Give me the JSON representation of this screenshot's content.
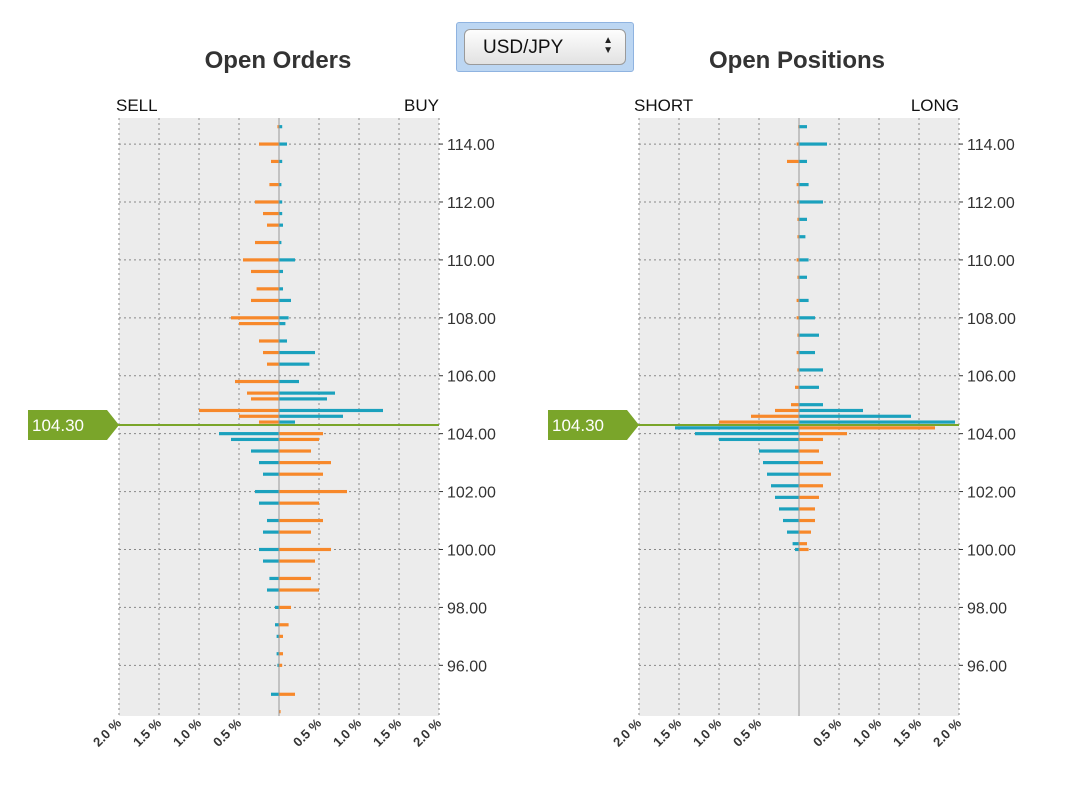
{
  "selector": {
    "label": "USD/JPY"
  },
  "colors": {
    "buy": "#1ba1bd",
    "sell": "#f7882a",
    "price": "#7aa52a",
    "plot_bg": "#ececec",
    "grid": "#888888"
  },
  "chart_data": [
    {
      "type": "bar",
      "orientation": "horizontal-diverging",
      "title": "Open Orders",
      "left_label": "SELL",
      "right_label": "BUY",
      "current_price": 104.3,
      "current_price_label": "104.30",
      "xlim": [
        -2.0,
        2.0
      ],
      "ylim": [
        94.25,
        114.9
      ],
      "x_ticks": [
        -2.0,
        -1.5,
        -1.0,
        -0.5,
        0.5,
        1.0,
        1.5,
        2.0
      ],
      "x_tick_labels": [
        "2.0 %",
        "1.5 %",
        "1.0 %",
        "0.5 %",
        "0.5 %",
        "1.0 %",
        "1.5 %",
        "2.0 %"
      ],
      "y_ticks": [
        96,
        98,
        100,
        102,
        104,
        106,
        108,
        110,
        112,
        114
      ],
      "y_tick_labels": [
        "96.00",
        "98.00",
        "100.00",
        "102.00",
        "104.00",
        "106.00",
        "108.00",
        "110.00",
        "112.00",
        "114.00"
      ],
      "bucket_size": 0.2,
      "buckets": [
        {
          "price": 114.6,
          "sell": 0.02,
          "buy": 0.04
        },
        {
          "price": 114.0,
          "sell": 0.25,
          "buy": 0.1
        },
        {
          "price": 113.4,
          "sell": 0.1,
          "buy": 0.04
        },
        {
          "price": 112.6,
          "sell": 0.12,
          "buy": 0.03
        },
        {
          "price": 112.0,
          "sell": 0.3,
          "buy": 0.04
        },
        {
          "price": 111.6,
          "sell": 0.2,
          "buy": 0.04
        },
        {
          "price": 111.2,
          "sell": 0.15,
          "buy": 0.05
        },
        {
          "price": 110.6,
          "sell": 0.3,
          "buy": 0.03
        },
        {
          "price": 110.0,
          "sell": 0.45,
          "buy": 0.2
        },
        {
          "price": 109.6,
          "sell": 0.35,
          "buy": 0.05
        },
        {
          "price": 109.0,
          "sell": 0.28,
          "buy": 0.05
        },
        {
          "price": 108.6,
          "sell": 0.35,
          "buy": 0.15
        },
        {
          "price": 108.0,
          "sell": 0.6,
          "buy": 0.12
        },
        {
          "price": 107.8,
          "sell": 0.5,
          "buy": 0.08
        },
        {
          "price": 107.2,
          "sell": 0.25,
          "buy": 0.1
        },
        {
          "price": 106.8,
          "sell": 0.2,
          "buy": 0.45
        },
        {
          "price": 106.4,
          "sell": 0.15,
          "buy": 0.38
        },
        {
          "price": 105.8,
          "sell": 0.55,
          "buy": 0.25
        },
        {
          "price": 105.4,
          "sell": 0.4,
          "buy": 0.7
        },
        {
          "price": 105.2,
          "sell": 0.35,
          "buy": 0.6
        },
        {
          "price": 104.8,
          "sell": 1.0,
          "buy": 1.3
        },
        {
          "price": 104.6,
          "sell": 0.5,
          "buy": 0.8
        },
        {
          "price": 104.4,
          "sell": 0.25,
          "buy": 0.2
        },
        {
          "price": 104.0,
          "sell": 0.75,
          "buy": 0.55
        },
        {
          "price": 103.8,
          "sell": 0.6,
          "buy": 0.5
        },
        {
          "price": 103.4,
          "sell": 0.35,
          "buy": 0.4
        },
        {
          "price": 103.0,
          "sell": 0.25,
          "buy": 0.65
        },
        {
          "price": 102.6,
          "sell": 0.2,
          "buy": 0.55
        },
        {
          "price": 102.0,
          "sell": 0.3,
          "buy": 0.85
        },
        {
          "price": 101.6,
          "sell": 0.25,
          "buy": 0.5
        },
        {
          "price": 101.0,
          "sell": 0.15,
          "buy": 0.55
        },
        {
          "price": 100.6,
          "sell": 0.2,
          "buy": 0.4
        },
        {
          "price": 100.0,
          "sell": 0.25,
          "buy": 0.65
        },
        {
          "price": 99.6,
          "sell": 0.2,
          "buy": 0.45
        },
        {
          "price": 99.0,
          "sell": 0.12,
          "buy": 0.4
        },
        {
          "price": 98.6,
          "sell": 0.15,
          "buy": 0.5
        },
        {
          "price": 98.0,
          "sell": 0.05,
          "buy": 0.15
        },
        {
          "price": 97.4,
          "sell": 0.05,
          "buy": 0.12
        },
        {
          "price": 97.0,
          "sell": 0.03,
          "buy": 0.05
        },
        {
          "price": 96.4,
          "sell": 0.03,
          "buy": 0.05
        },
        {
          "price": 96.0,
          "sell": 0.02,
          "buy": 0.04
        },
        {
          "price": 95.0,
          "sell": 0.1,
          "buy": 0.2
        },
        {
          "price": 94.4,
          "sell": 0.0,
          "buy": 0.02
        }
      ]
    },
    {
      "type": "bar",
      "orientation": "horizontal-diverging",
      "title": "Open Positions",
      "left_label": "SHORT",
      "right_label": "LONG",
      "current_price": 104.3,
      "current_price_label": "104.30",
      "xlim": [
        -2.0,
        2.0
      ],
      "ylim": [
        94.25,
        114.9
      ],
      "x_ticks": [
        -2.0,
        -1.5,
        -1.0,
        -0.5,
        0.5,
        1.0,
        1.5,
        2.0
      ],
      "x_tick_labels": [
        "2.0 %",
        "1.5 %",
        "1.0 %",
        "0.5 %",
        "0.5 %",
        "1.0 %",
        "1.5 %",
        "2.0 %"
      ],
      "y_ticks": [
        96,
        98,
        100,
        102,
        104,
        106,
        108,
        110,
        112,
        114
      ],
      "y_tick_labels": [
        "96.00",
        "98.00",
        "100.00",
        "102.00",
        "104.00",
        "106.00",
        "108.00",
        "110.00",
        "112.00",
        "114.00"
      ],
      "bucket_size": 0.2,
      "buckets": [
        {
          "price": 114.6,
          "short": 0.01,
          "long": 0.1
        },
        {
          "price": 114.0,
          "short": 0.03,
          "long": 0.35
        },
        {
          "price": 113.4,
          "short": 0.15,
          "long": 0.1
        },
        {
          "price": 112.6,
          "short": 0.03,
          "long": 0.12
        },
        {
          "price": 112.0,
          "short": 0.02,
          "long": 0.3
        },
        {
          "price": 111.4,
          "short": 0.02,
          "long": 0.1
        },
        {
          "price": 110.8,
          "short": 0.02,
          "long": 0.08
        },
        {
          "price": 110.0,
          "short": 0.03,
          "long": 0.12
        },
        {
          "price": 109.4,
          "short": 0.02,
          "long": 0.1
        },
        {
          "price": 108.6,
          "short": 0.03,
          "long": 0.12
        },
        {
          "price": 108.0,
          "short": 0.03,
          "long": 0.2
        },
        {
          "price": 107.4,
          "short": 0.02,
          "long": 0.25
        },
        {
          "price": 106.8,
          "short": 0.03,
          "long": 0.2
        },
        {
          "price": 106.2,
          "short": 0.02,
          "long": 0.3
        },
        {
          "price": 105.6,
          "short": 0.05,
          "long": 0.25
        },
        {
          "price": 105.0,
          "short": 0.1,
          "long": 0.3
        },
        {
          "price": 104.8,
          "short": 0.3,
          "long": 0.8
        },
        {
          "price": 104.6,
          "short": 0.6,
          "long": 1.4
        },
        {
          "price": 104.4,
          "short": 1.0,
          "long": 1.95
        },
        {
          "price": 104.2,
          "short": 1.55,
          "long": 1.7
        },
        {
          "price": 104.0,
          "short": 1.3,
          "long": 0.6
        },
        {
          "price": 103.8,
          "short": 1.0,
          "long": 0.3
        },
        {
          "price": 103.4,
          "short": 0.5,
          "long": 0.25
        },
        {
          "price": 103.0,
          "short": 0.45,
          "long": 0.3
        },
        {
          "price": 102.6,
          "short": 0.4,
          "long": 0.4
        },
        {
          "price": 102.2,
          "short": 0.35,
          "long": 0.3
        },
        {
          "price": 101.8,
          "short": 0.3,
          "long": 0.25
        },
        {
          "price": 101.4,
          "short": 0.25,
          "long": 0.2
        },
        {
          "price": 101.0,
          "short": 0.2,
          "long": 0.2
        },
        {
          "price": 100.6,
          "short": 0.15,
          "long": 0.15
        },
        {
          "price": 100.2,
          "short": 0.08,
          "long": 0.1
        },
        {
          "price": 100.0,
          "short": 0.05,
          "long": 0.12
        }
      ]
    }
  ]
}
